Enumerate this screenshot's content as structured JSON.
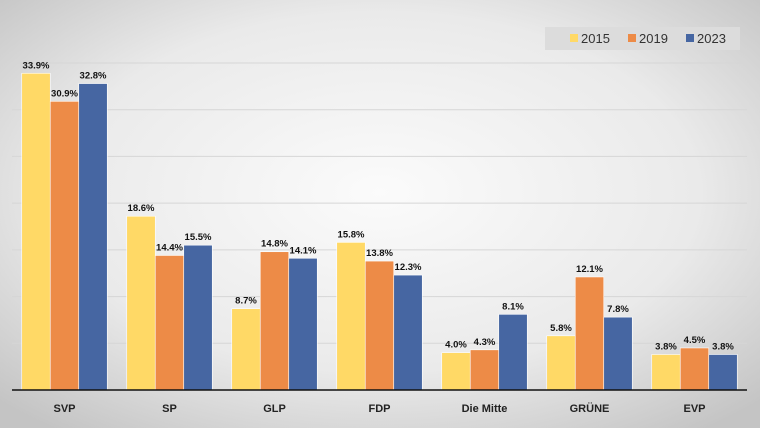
{
  "chart_data": {
    "type": "bar",
    "title": "",
    "xlabel": "",
    "ylabel": "",
    "ylim": [
      0,
      35
    ],
    "grid": true,
    "grid_step": 5,
    "legend_position": "top-right",
    "categories": [
      "SVP",
      "SP",
      "GLP",
      "FDP",
      "Die Mitte",
      "GRÜNE",
      "EVP"
    ],
    "series": [
      {
        "name": "2015",
        "color": "#FFD966",
        "values": [
          33.9,
          18.6,
          8.7,
          15.8,
          4.0,
          5.8,
          3.8
        ]
      },
      {
        "name": "2019",
        "color": "#ED8B47",
        "values": [
          30.9,
          14.4,
          14.8,
          13.8,
          4.3,
          12.1,
          4.5
        ]
      },
      {
        "name": "2023",
        "color": "#4666A2",
        "values": [
          32.8,
          15.5,
          14.1,
          12.3,
          8.1,
          7.8,
          3.8
        ]
      }
    ],
    "data_label_format": "{v}%"
  }
}
